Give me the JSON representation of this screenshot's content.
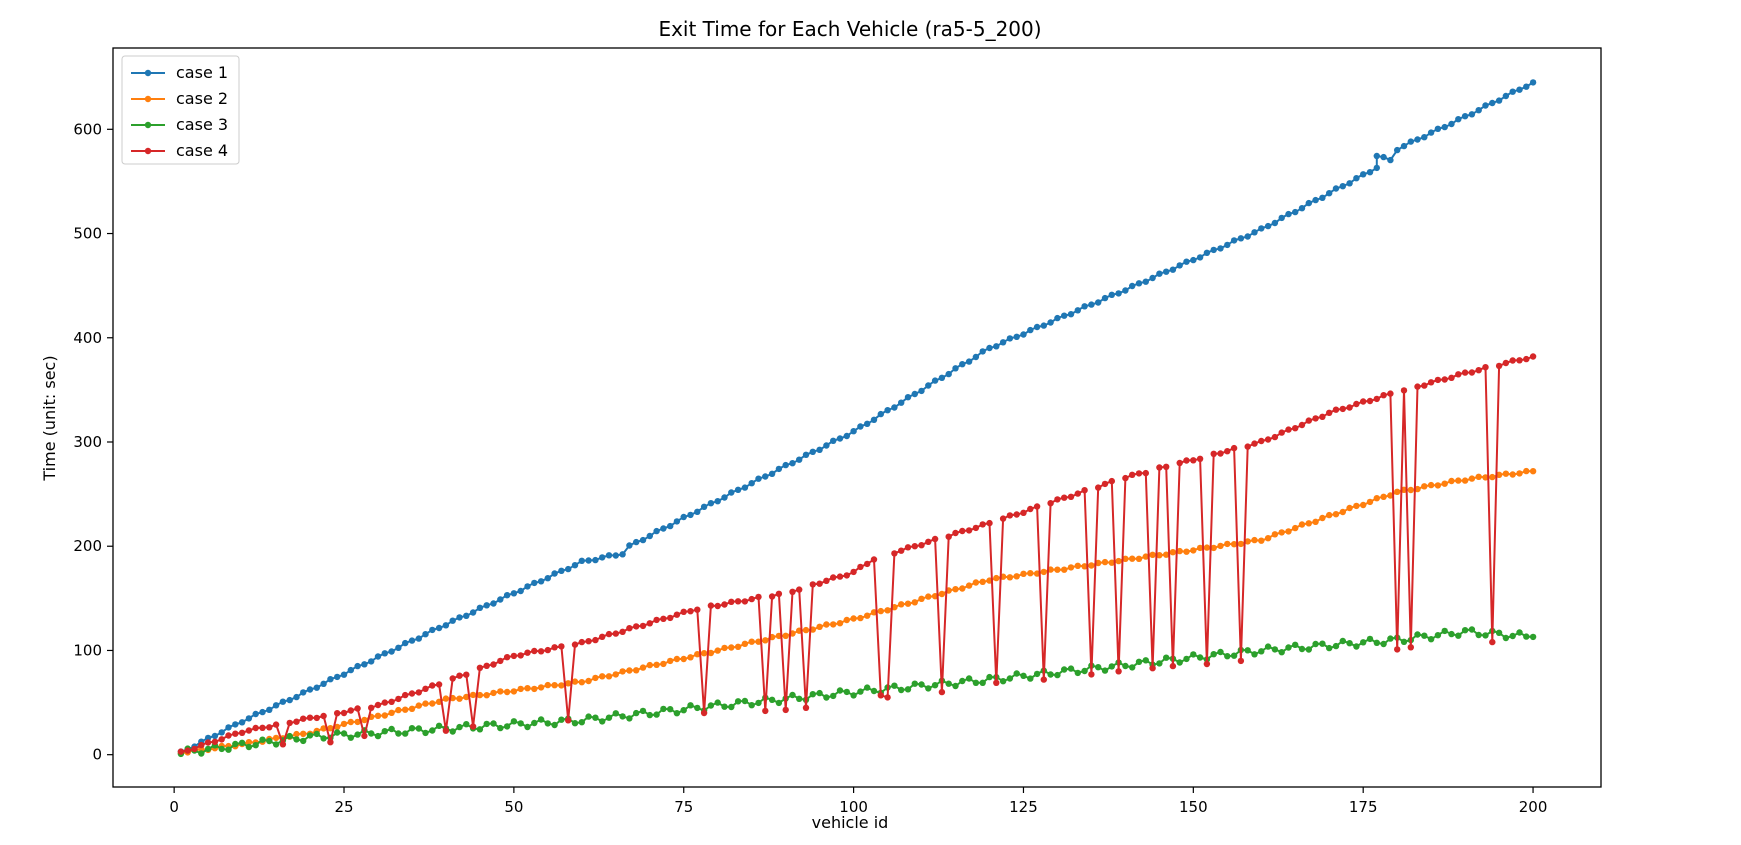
{
  "chart_data": {
    "type": "line",
    "title": "Exit Time for Each Vehicle (ra5-5_200)",
    "xlabel": "vehicle id",
    "ylabel": "Time (unit: sec)",
    "xlim": [
      -9,
      210
    ],
    "ylim": [
      -31,
      678
    ],
    "xticks": [
      0,
      25,
      50,
      75,
      100,
      125,
      150,
      175,
      200
    ],
    "yticks": [
      0,
      100,
      200,
      300,
      400,
      500,
      600
    ],
    "grid": false,
    "legend_position": "top-left",
    "series": [
      {
        "name": "case 1",
        "color": "#1f77b4",
        "anchors": [
          [
            1,
            2
          ],
          [
            10,
            32
          ],
          [
            20,
            62
          ],
          [
            40,
            125
          ],
          [
            60,
            185
          ],
          [
            66,
            193
          ],
          [
            67,
            200
          ],
          [
            80,
            244
          ],
          [
            100,
            310
          ],
          [
            120,
            390
          ],
          [
            140,
            446
          ],
          [
            160,
            504
          ],
          [
            177,
            563
          ],
          [
            177,
            575
          ],
          [
            179,
            570
          ],
          [
            180,
            581
          ],
          [
            190,
            612
          ],
          [
            200,
            645
          ]
        ]
      },
      {
        "name": "case 2",
        "color": "#ff7f0e",
        "anchors": [
          [
            1,
            2
          ],
          [
            10,
            10
          ],
          [
            20,
            21
          ],
          [
            40,
            53
          ],
          [
            60,
            70
          ],
          [
            80,
            100
          ],
          [
            100,
            130
          ],
          [
            120,
            168
          ],
          [
            140,
            187
          ],
          [
            160,
            206
          ],
          [
            180,
            252
          ],
          [
            190,
            264
          ],
          [
            200,
            272
          ]
        ]
      },
      {
        "name": "case 3",
        "color": "#2ca02c",
        "anchors": [
          [
            1,
            2
          ],
          [
            20,
            17
          ],
          [
            40,
            25
          ],
          [
            60,
            33
          ],
          [
            80,
            47
          ],
          [
            100,
            60
          ],
          [
            120,
            72
          ],
          [
            140,
            86
          ],
          [
            160,
            100
          ],
          [
            180,
            110
          ],
          [
            190,
            118
          ],
          [
            200,
            113
          ]
        ]
      },
      {
        "name": "case 4",
        "color": "#d62728",
        "anchors": [
          [
            1,
            2
          ],
          [
            10,
            22
          ],
          [
            20,
            35
          ],
          [
            30,
            47
          ],
          [
            40,
            70
          ],
          [
            50,
            95
          ],
          [
            60,
            107
          ],
          [
            77,
            140
          ],
          [
            90,
            155
          ],
          [
            100,
            175
          ],
          [
            103,
            188
          ],
          [
            120,
            222
          ],
          [
            140,
            266
          ],
          [
            160,
            300
          ],
          [
            170,
            328
          ],
          [
            179,
            346
          ],
          [
            190,
            366
          ],
          [
            200,
            382
          ]
        ],
        "dips": [
          [
            16,
            10
          ],
          [
            23,
            12
          ],
          [
            28,
            18
          ],
          [
            40,
            23
          ],
          [
            44,
            27
          ],
          [
            58,
            33
          ],
          [
            78,
            40
          ],
          [
            87,
            42
          ],
          [
            90,
            43
          ],
          [
            93,
            45
          ],
          [
            104,
            57
          ],
          [
            105,
            55
          ],
          [
            113,
            60
          ],
          [
            121,
            69
          ],
          [
            128,
            72
          ],
          [
            135,
            77
          ],
          [
            139,
            80
          ],
          [
            144,
            83
          ],
          [
            147,
            85
          ],
          [
            152,
            87
          ],
          [
            157,
            90
          ],
          [
            180,
            101
          ],
          [
            182,
            103
          ],
          [
            194,
            108
          ]
        ]
      }
    ]
  }
}
